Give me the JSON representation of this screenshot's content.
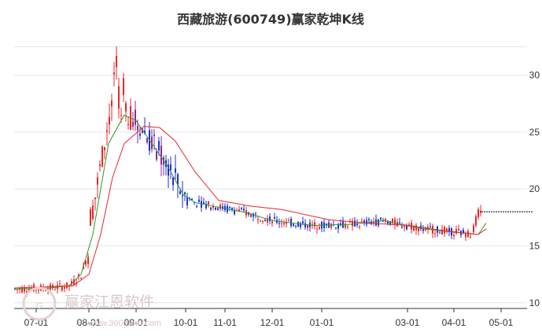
{
  "chart_data": {
    "type": "candlestick",
    "title": "西藏旅游(600749)赢家乾坤K线",
    "xlabel": "",
    "ylabel": "",
    "x_ticks": [
      "07-01",
      "08-01",
      "09-01",
      "10-01",
      "11-01",
      "12-01",
      "01-01",
      "03-01",
      "04-01",
      "05-01"
    ],
    "y_ticks": [
      10,
      15,
      20,
      25,
      30
    ],
    "ylim": [
      9.5,
      33.5
    ],
    "grid": "horizontal",
    "last_price_line": 18.0,
    "colors": {
      "up": "#e8262a",
      "down": "#1c2fd6",
      "neutral": "#8b2a8f",
      "ma_short": "#2c9a2c",
      "ma_long": "#e8262a",
      "price_line": "#000000"
    },
    "series": [
      {
        "name": "",
        "kind": "ma_short",
        "x": [
          0,
          45,
          70,
          85,
          100,
          120,
          140,
          155,
          175,
          195,
          215,
          230,
          260,
          290,
          330,
          380,
          430,
          470,
          520,
          560,
          590,
          600
        ],
        "y": [
          11.2,
          11.3,
          11.5,
          12.5,
          16.0,
          24.0,
          26.5,
          26.0,
          24.0,
          22.0,
          19.5,
          18.8,
          18.4,
          18.0,
          17.2,
          16.8,
          16.9,
          17.2,
          16.5,
          16.2,
          16.0,
          17.0
        ]
      },
      {
        "name": "",
        "kind": "ma_long",
        "x": [
          0,
          45,
          75,
          95,
          110,
          125,
          140,
          165,
          185,
          205,
          230,
          260,
          300,
          340,
          400,
          450,
          500,
          550,
          590,
          600
        ],
        "y": [
          11.3,
          11.4,
          11.5,
          12.5,
          16.0,
          21.0,
          24.0,
          25.5,
          25.4,
          24.2,
          21.5,
          19.0,
          18.5,
          18.2,
          17.3,
          17.0,
          16.8,
          16.3,
          16.0,
          16.5
        ]
      }
    ],
    "candles_note": "",
    "watermark": "赢家江恩软件",
    "watermark_url": "www.360gann.com"
  }
}
